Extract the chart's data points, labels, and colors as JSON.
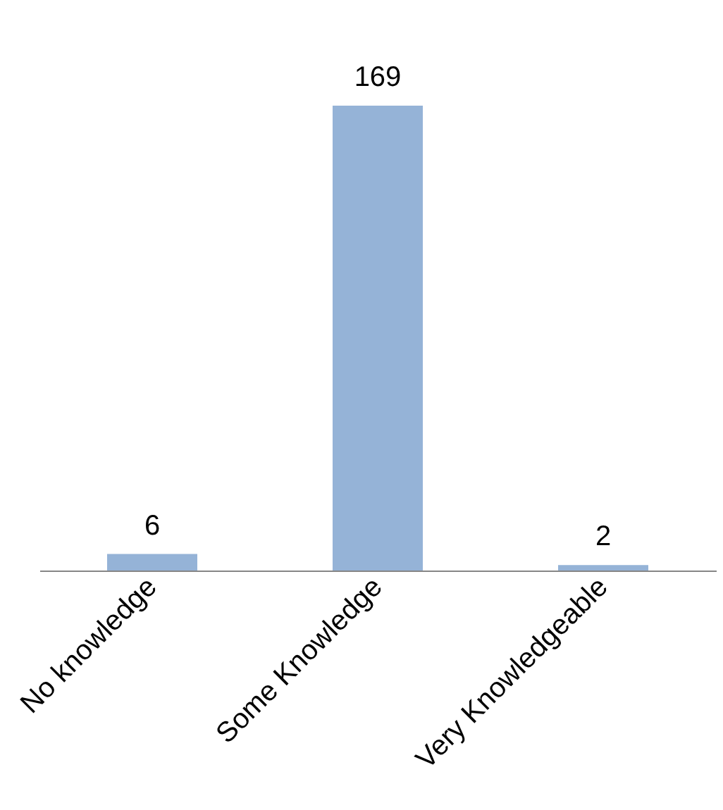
{
  "chart_data": {
    "type": "bar",
    "categories": [
      "No knowledge",
      "Some Knowledge",
      "Very Knowledgeable"
    ],
    "values": [
      6,
      169,
      2
    ],
    "color": "#95b3d7",
    "data_labels": true
  }
}
